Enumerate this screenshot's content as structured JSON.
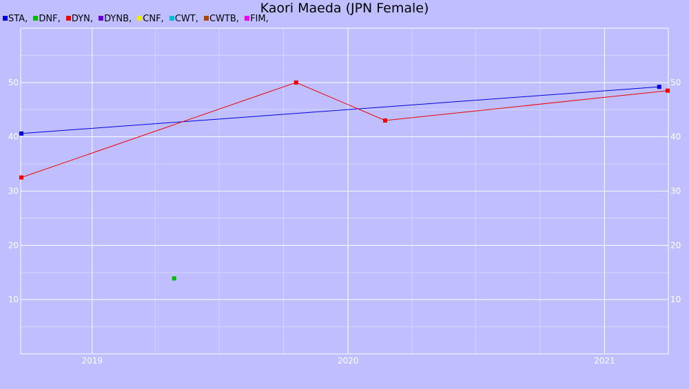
{
  "chart_data": {
    "type": "line",
    "title": "Kaori Maeda (JPN Female)",
    "xlabel": "",
    "ylabel": "",
    "x_axis": {
      "type": "date",
      "range": [
        "2018-09-21",
        "2021-04-02"
      ],
      "ticks": [
        "2019",
        "2020",
        "2021"
      ],
      "tick_dates": [
        "2019-01-01",
        "2020-01-01",
        "2021-01-01"
      ],
      "minor_tick_dates": [
        "2019-04-01",
        "2019-07-01",
        "2019-10-01",
        "2020-04-01",
        "2020-07-01",
        "2020-10-01"
      ]
    },
    "y_axis": {
      "range": [
        0,
        60
      ],
      "ticks": [
        10,
        20,
        30,
        40,
        50
      ],
      "minor_ticks": [
        5,
        15,
        25,
        35,
        45,
        55
      ],
      "labels_left": true,
      "labels_right": true
    },
    "grid": true,
    "legend_position": "top-left",
    "legend": [
      {
        "label": "STA,",
        "color": "#0000dd"
      },
      {
        "label": "DNF,",
        "color": "#00bb00"
      },
      {
        "label": "DYN,",
        "color": "#ee0000"
      },
      {
        "label": "DYNB,",
        "color": "#6600dd"
      },
      {
        "label": "CNF,",
        "color": "#eeee00"
      },
      {
        "label": "CWT,",
        "color": "#00bbdd"
      },
      {
        "label": "CWTB,",
        "color": "#aa4400"
      },
      {
        "label": "FIM,",
        "color": "#ee00ee"
      }
    ],
    "series": [
      {
        "name": "STA",
        "color": "#0000dd",
        "points": [
          {
            "date": "2018-09-22",
            "value": 40.6
          },
          {
            "date": "2021-03-20",
            "value": 49.2
          }
        ]
      },
      {
        "name": "DNF",
        "color": "#00bb00",
        "points": [
          {
            "date": "2019-04-28",
            "value": 13.9
          }
        ]
      },
      {
        "name": "DYN",
        "color": "#ee0000",
        "points": [
          {
            "date": "2018-09-22",
            "value": 32.5
          },
          {
            "date": "2019-10-19",
            "value": 50.0
          },
          {
            "date": "2020-02-23",
            "value": 43.0
          },
          {
            "date": "2021-04-01",
            "value": 48.5
          }
        ]
      }
    ]
  }
}
